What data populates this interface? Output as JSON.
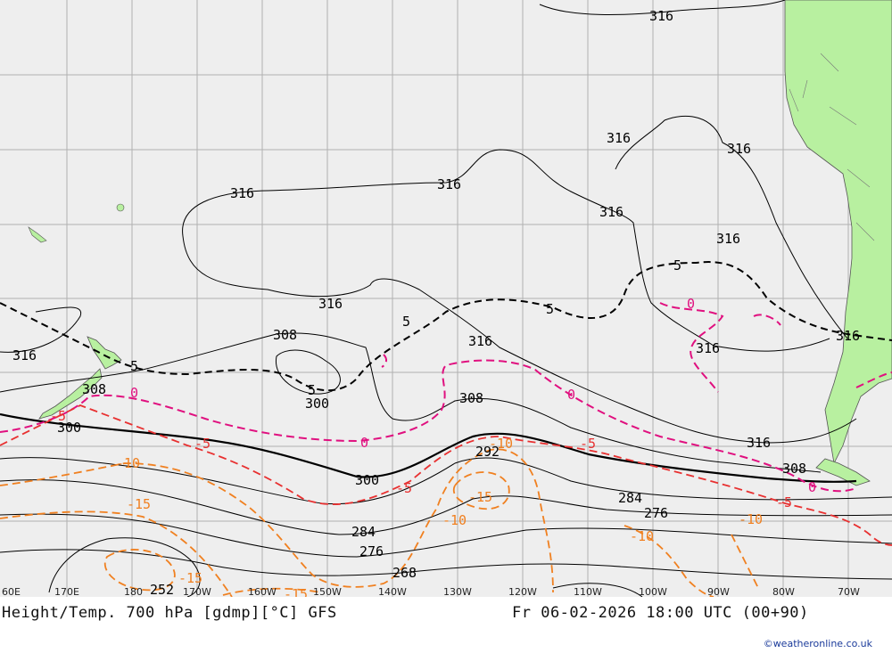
{
  "map": {
    "title": "Height/Temp. 700 hPa [gdmp][°C] GFS",
    "valid": "Fr 06-02-2026 18:00 UTC (00+90)",
    "credit": "©weatheronline.co.uk",
    "lon_labels": [
      "60E",
      "170E",
      "180",
      "170W",
      "160W",
      "150W",
      "140W",
      "130W",
      "120W",
      "110W",
      "100W",
      "90W",
      "80W",
      "70W"
    ],
    "height_labels": [
      "316",
      "316",
      "316",
      "316",
      "316",
      "316",
      "316",
      "316",
      "316",
      "316",
      "316",
      "316",
      "316",
      "308",
      "308",
      "308",
      "308",
      "300",
      "300",
      "300",
      "292",
      "284",
      "284",
      "276",
      "276",
      "268",
      "252"
    ],
    "temp_labels": [
      "5",
      "5",
      "5",
      "5",
      "5",
      "0",
      "0",
      "0",
      "0",
      "0",
      "-5",
      "-5",
      "-5",
      "-5",
      "-5",
      "-10",
      "-10",
      "-10",
      "-10",
      "-10",
      "-15",
      "-15",
      "-15",
      "-15"
    ],
    "colors": {
      "ocean": "#eeeeee",
      "land": "#b8f0a0",
      "grid": "#b0b0b0",
      "height_line": "#000000",
      "temp_positive": "#000000",
      "temp_zero": "#e0107f",
      "temp_minus5": "#e83030",
      "temp_minus10": "#f08020"
    }
  }
}
